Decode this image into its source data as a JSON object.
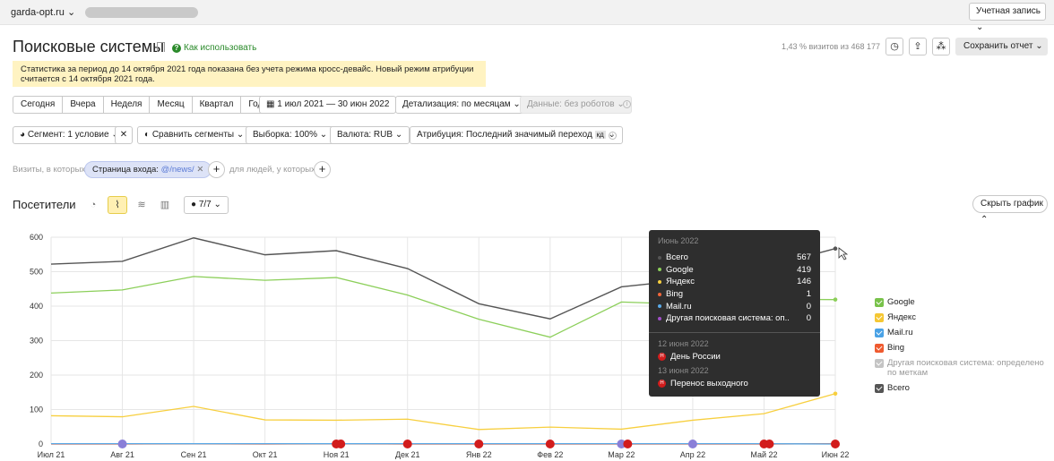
{
  "header": {
    "site": "garda-opt.ru",
    "account": "Учетная запись"
  },
  "page": {
    "title": "Поисковые системы",
    "howto": "Как использовать",
    "visits_share": "1,43 % визитов из 468 177",
    "save": "Сохранить отчет"
  },
  "notice": "Статистика за период до 14 октября 2021 года показана без учета режима кросс-девайс. Новый режим атрибуции считается с 14 октября 2021 года.",
  "periods": [
    "Сегодня",
    "Вчера",
    "Неделя",
    "Месяц",
    "Квартал",
    "Год"
  ],
  "filters": {
    "date_range": "1 июл 2021 — 30 июн 2022",
    "detail": "Детализация: по месяцам",
    "data": "Данные: без роботов",
    "segment": "Сегмент: 1 условие",
    "compare": "Сравнить сегменты",
    "sample": "Выборка: 100%",
    "currency": "Валюта: RUB",
    "attribution": "Атрибуция: Последний значимый переход",
    "attribution_tag": "кд"
  },
  "seg": {
    "prefix": "Визиты, в которых",
    "chip_label": "Страница входа:",
    "chip_value": "@/news/",
    "people": "для людей, у которых"
  },
  "chart_header": {
    "title": "Посетители",
    "series_count": "7/7",
    "hide": "Скрыть график"
  },
  "chart_data": {
    "type": "line",
    "categories": [
      "Июл 21",
      "Авг 21",
      "Сен 21",
      "Окт 21",
      "Ноя 21",
      "Дек 21",
      "Янв 22",
      "Фев 22",
      "Мар 22",
      "Апр 22",
      "Май 22",
      "Июн 22"
    ],
    "ylim": [
      0,
      600
    ],
    "yticks": [
      0,
      100,
      200,
      300,
      400,
      500,
      600
    ],
    "grid": true,
    "legend_position": "right",
    "series": [
      {
        "name": "Google",
        "color": "#8ccf5a",
        "values": [
          438,
          447,
          486,
          475,
          483,
          432,
          362,
          310,
          412,
          405,
          420,
          419
        ]
      },
      {
        "name": "Яндекс",
        "color": "#f7cf3f",
        "values": [
          82,
          79,
          109,
          70,
          69,
          72,
          42,
          49,
          43,
          69,
          88,
          146
        ]
      },
      {
        "name": "Mail.ru",
        "color": "#5aaae8",
        "values": [
          1,
          1,
          1,
          1,
          1,
          1,
          1,
          1,
          1,
          1,
          1,
          0
        ]
      },
      {
        "name": "Bing",
        "color": "#f2663a",
        "values": [
          0,
          0,
          1,
          0,
          1,
          0,
          0,
          0,
          0,
          0,
          0,
          1
        ]
      },
      {
        "name": "Другая поисковая система: определено по меткам",
        "color": "#c0c0c0",
        "values": [
          0,
          0,
          0,
          0,
          0,
          0,
          0,
          0,
          0,
          0,
          0,
          0
        ]
      },
      {
        "name": "Всего",
        "color": "#555555",
        "values": [
          522,
          530,
          598,
          549,
          561,
          509,
          407,
          363,
          456,
          478,
          512,
          567
        ]
      }
    ]
  },
  "tooltip": {
    "header": "Июнь 2022",
    "rows": [
      {
        "name": "Всего",
        "value": "567",
        "color": "#555555"
      },
      {
        "name": "Google",
        "value": "419",
        "color": "#8ccf5a"
      },
      {
        "name": "Яндекс",
        "value": "146",
        "color": "#f7cf3f"
      },
      {
        "name": "Bing",
        "value": "1",
        "color": "#f2663a"
      },
      {
        "name": "Mail.ru",
        "value": "0",
        "color": "#5aaae8"
      },
      {
        "name": "Другая поисковая система: оп...",
        "value": "0",
        "color": "#a04fc9"
      }
    ],
    "events": [
      {
        "date": "12 июня 2022",
        "text": "День России"
      },
      {
        "date": "13 июня 2022",
        "text": "Перенос выходного"
      }
    ]
  },
  "legend": [
    {
      "name": "Google",
      "color": "#78c24a"
    },
    {
      "name": "Яндекс",
      "color": "#f5c733"
    },
    {
      "name": "Mail.ru",
      "color": "#4aa2e6"
    },
    {
      "name": "Bing",
      "color": "#ef5a2f"
    },
    {
      "name": "Другая поисковая система: определено по меткам",
      "color": "#c4c4c4",
      "faded": true
    },
    {
      "name": "Всего",
      "color": "#555555"
    }
  ]
}
